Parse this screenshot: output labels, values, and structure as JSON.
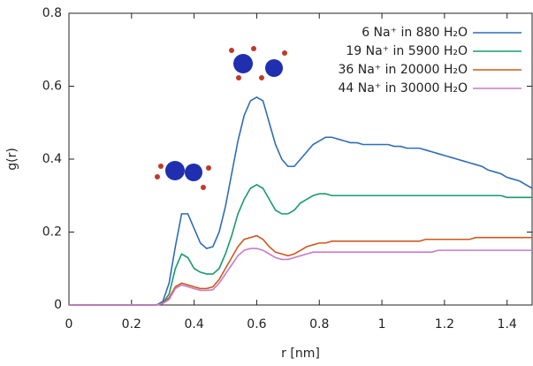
{
  "chart_data": {
    "type": "line",
    "xlabel": "r [nm]",
    "ylabel": "g(r)",
    "xlim": [
      0,
      1.48
    ],
    "ylim": [
      0,
      0.8
    ],
    "xticks": [
      0,
      0.2,
      0.4,
      0.6,
      0.8,
      1,
      1.2,
      1.4
    ],
    "yticks": [
      0,
      0.2,
      0.4,
      0.6,
      0.8
    ],
    "grid": false,
    "legend": "upper right",
    "x": [
      0,
      0.02,
      0.04,
      0.06,
      0.08,
      0.1,
      0.12,
      0.14,
      0.16,
      0.18,
      0.2,
      0.22,
      0.24,
      0.26,
      0.28,
      0.3,
      0.32,
      0.34,
      0.36,
      0.38,
      0.4,
      0.42,
      0.44,
      0.46,
      0.48,
      0.5,
      0.52,
      0.54,
      0.56,
      0.58,
      0.6,
      0.62,
      0.64,
      0.66,
      0.68,
      0.7,
      0.72,
      0.74,
      0.76,
      0.78,
      0.8,
      0.82,
      0.84,
      0.86,
      0.88,
      0.9,
      0.92,
      0.94,
      0.96,
      0.98,
      1,
      1.02,
      1.04,
      1.06,
      1.08,
      1.1,
      1.12,
      1.14,
      1.16,
      1.18,
      1.2,
      1.22,
      1.24,
      1.26,
      1.28,
      1.3,
      1.32,
      1.34,
      1.36,
      1.38,
      1.4,
      1.42,
      1.44,
      1.46,
      1.48
    ],
    "series": [
      {
        "name": "6 Na⁺ in 880 H₂O",
        "color": "#2f6db5",
        "values": [
          0,
          0,
          0,
          0,
          0,
          0,
          0,
          0,
          0,
          0,
          0,
          0,
          0,
          0,
          0,
          0.01,
          0.06,
          0.16,
          0.25,
          0.25,
          0.21,
          0.17,
          0.155,
          0.16,
          0.2,
          0.27,
          0.36,
          0.45,
          0.52,
          0.56,
          0.57,
          0.56,
          0.5,
          0.44,
          0.4,
          0.38,
          0.38,
          0.4,
          0.42,
          0.44,
          0.45,
          0.46,
          0.46,
          0.455,
          0.45,
          0.445,
          0.445,
          0.44,
          0.44,
          0.44,
          0.44,
          0.44,
          0.435,
          0.435,
          0.43,
          0.43,
          0.43,
          0.425,
          0.42,
          0.415,
          0.41,
          0.405,
          0.4,
          0.395,
          0.39,
          0.385,
          0.38,
          0.37,
          0.365,
          0.36,
          0.35,
          0.345,
          0.34,
          0.33,
          0.32
        ]
      },
      {
        "name": "19 Na⁺ in 5900 H₂O",
        "color": "#1a9a6c",
        "values": [
          0,
          0,
          0,
          0,
          0,
          0,
          0,
          0,
          0,
          0,
          0,
          0,
          0,
          0,
          0,
          0.005,
          0.03,
          0.1,
          0.14,
          0.13,
          0.1,
          0.09,
          0.085,
          0.085,
          0.1,
          0.14,
          0.19,
          0.25,
          0.29,
          0.32,
          0.33,
          0.32,
          0.29,
          0.26,
          0.25,
          0.25,
          0.26,
          0.28,
          0.29,
          0.3,
          0.305,
          0.305,
          0.3,
          0.3,
          0.3,
          0.3,
          0.3,
          0.3,
          0.3,
          0.3,
          0.3,
          0.3,
          0.3,
          0.3,
          0.3,
          0.3,
          0.3,
          0.3,
          0.3,
          0.3,
          0.3,
          0.3,
          0.3,
          0.3,
          0.3,
          0.3,
          0.3,
          0.3,
          0.3,
          0.3,
          0.295,
          0.295,
          0.295,
          0.295,
          0.295
        ]
      },
      {
        "name": "36 Na⁺ in 20000 H₂O",
        "color": "#cc5a1e",
        "values": [
          0,
          0,
          0,
          0,
          0,
          0,
          0,
          0,
          0,
          0,
          0,
          0,
          0,
          0,
          0,
          0.005,
          0.02,
          0.05,
          0.06,
          0.055,
          0.05,
          0.045,
          0.045,
          0.05,
          0.07,
          0.1,
          0.13,
          0.16,
          0.18,
          0.185,
          0.19,
          0.18,
          0.16,
          0.145,
          0.14,
          0.135,
          0.14,
          0.15,
          0.16,
          0.165,
          0.17,
          0.17,
          0.175,
          0.175,
          0.175,
          0.175,
          0.175,
          0.175,
          0.175,
          0.175,
          0.175,
          0.175,
          0.175,
          0.175,
          0.175,
          0.175,
          0.175,
          0.18,
          0.18,
          0.18,
          0.18,
          0.18,
          0.18,
          0.18,
          0.18,
          0.185,
          0.185,
          0.185,
          0.185,
          0.185,
          0.185,
          0.185,
          0.185,
          0.185,
          0.185
        ]
      },
      {
        "name": "44 Na⁺ in 30000 H₂O",
        "color": "#c77cc9",
        "values": [
          0,
          0,
          0,
          0,
          0,
          0,
          0,
          0,
          0,
          0,
          0,
          0,
          0,
          0,
          0,
          0.004,
          0.015,
          0.045,
          0.055,
          0.05,
          0.045,
          0.04,
          0.04,
          0.042,
          0.06,
          0.085,
          0.11,
          0.135,
          0.15,
          0.155,
          0.155,
          0.15,
          0.14,
          0.13,
          0.125,
          0.125,
          0.13,
          0.135,
          0.14,
          0.145,
          0.145,
          0.145,
          0.145,
          0.145,
          0.145,
          0.145,
          0.145,
          0.145,
          0.145,
          0.145,
          0.145,
          0.145,
          0.145,
          0.145,
          0.145,
          0.145,
          0.145,
          0.145,
          0.145,
          0.15,
          0.15,
          0.15,
          0.15,
          0.15,
          0.15,
          0.15,
          0.15,
          0.15,
          0.15,
          0.15,
          0.15,
          0.15,
          0.15,
          0.15,
          0.15
        ]
      }
    ]
  }
}
